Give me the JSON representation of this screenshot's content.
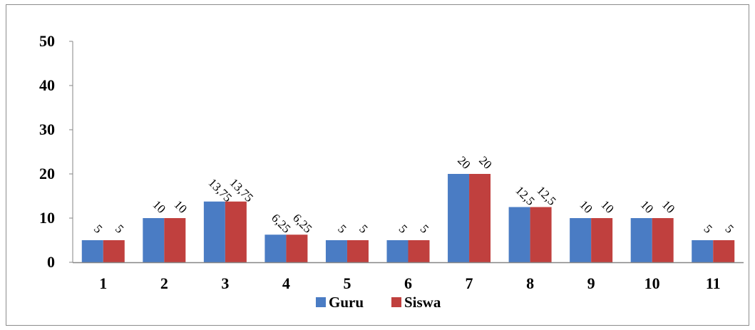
{
  "chart_data": {
    "type": "bar",
    "title": "",
    "xlabel": "",
    "ylabel": "",
    "categories": [
      "1",
      "2",
      "3",
      "4",
      "5",
      "6",
      "7",
      "8",
      "9",
      "10",
      "11"
    ],
    "series": [
      {
        "name": "Guru",
        "color": "#4a7cc4",
        "values": [
          5,
          10,
          13.75,
          6.25,
          5,
          5,
          20,
          12.5,
          10,
          10,
          5
        ],
        "labels": [
          "5",
          "10",
          "13,75",
          "6,25",
          "5",
          "5",
          "20",
          "12,5",
          "10",
          "10",
          "5"
        ]
      },
      {
        "name": "Siswa",
        "color": "#c0403e",
        "values": [
          5,
          10,
          13.75,
          6.25,
          5,
          5,
          20,
          12.5,
          10,
          10,
          5
        ],
        "labels": [
          "5",
          "10",
          "13,75",
          "6,25",
          "5",
          "5",
          "20",
          "12,5",
          "10",
          "10",
          "5"
        ]
      }
    ],
    "ylim": [
      0,
      50
    ],
    "yticks": [
      "0",
      "10",
      "20",
      "30",
      "40",
      "50"
    ],
    "grid": false,
    "legend_position": "bottom"
  }
}
